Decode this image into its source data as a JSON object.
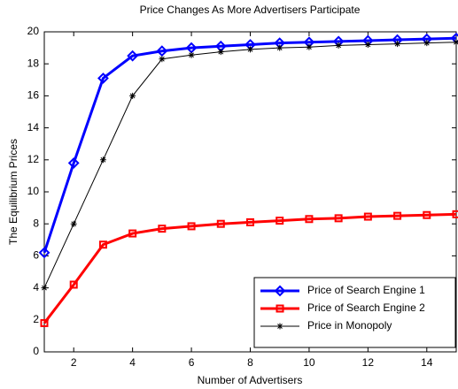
{
  "chart_data": {
    "type": "line",
    "title": "Price Changes As More Advertisers Participate",
    "x_label": "Number of Advertisers",
    "y_label": "The Equilibrium Prices",
    "x": [
      1,
      2,
      3,
      4,
      5,
      6,
      7,
      8,
      9,
      10,
      11,
      12,
      13,
      14,
      15
    ],
    "series": [
      {
        "name": "Price of Search Engine 1",
        "color": "#0000ff",
        "marker": "diamond",
        "line_width": 3,
        "values": [
          6.2,
          11.8,
          17.1,
          18.5,
          18.8,
          19.0,
          19.1,
          19.2,
          19.3,
          19.35,
          19.4,
          19.45,
          19.5,
          19.55,
          19.6
        ]
      },
      {
        "name": "Price of Search Engine 2",
        "color": "#ff0000",
        "marker": "square",
        "line_width": 3,
        "values": [
          1.8,
          4.2,
          6.7,
          7.4,
          7.7,
          7.85,
          8.0,
          8.1,
          8.2,
          8.3,
          8.35,
          8.45,
          8.5,
          8.55,
          8.6
        ]
      },
      {
        "name": "Price in Monopoly",
        "color": "#000000",
        "marker": "star",
        "line_width": 1,
        "values": [
          4,
          8,
          12,
          16,
          18.3,
          18.55,
          18.75,
          18.9,
          19.0,
          19.05,
          19.15,
          19.2,
          19.25,
          19.3,
          19.35
        ]
      }
    ],
    "xlim": [
      1,
      15
    ],
    "xticks": [
      2,
      4,
      6,
      8,
      10,
      12,
      14
    ],
    "ylim": [
      0,
      20
    ],
    "yticks": [
      0,
      2,
      4,
      6,
      8,
      10,
      12,
      14,
      16,
      18,
      20
    ],
    "grid": false,
    "legend": "lower right"
  }
}
